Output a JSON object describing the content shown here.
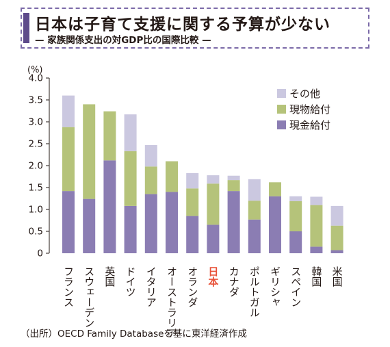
{
  "header": {
    "title": "日本は子育て支援に関する予算が少ない",
    "subtitle": "— 家族関係支出の対GDP比の国際比較 —"
  },
  "colors": {
    "cash": "#8b7db3",
    "in_kind": "#b5c37a",
    "other": "#cbc8e0",
    "highlight_label": "#e8533a",
    "title_accent": "#5e4b8b"
  },
  "chart_data": {
    "type": "bar",
    "stacked": true,
    "unit_label": "(%)",
    "ylim": [
      0,
      4.0
    ],
    "yticks": [
      "0",
      "0.5",
      "1.0",
      "1.5",
      "2.0",
      "2.5",
      "3.0",
      "3.5",
      "4.0"
    ],
    "ytick_values": [
      0,
      0.5,
      1.0,
      1.5,
      2.0,
      2.5,
      3.0,
      3.5,
      4.0
    ],
    "categories": [
      "フランス",
      "スウェーデン",
      "英国",
      "ドイツ",
      "イタリア",
      "オーストラリア",
      "オランダ",
      "日本",
      "カナダ",
      "ポルトガル",
      "ギリシャ",
      "スペイン",
      "韓国",
      "米国"
    ],
    "highlight_category": "日本",
    "series": [
      {
        "name": "現金給付",
        "color_key": "cash",
        "values": [
          1.42,
          1.24,
          2.12,
          1.08,
          1.35,
          1.4,
          0.85,
          0.65,
          1.42,
          0.77,
          1.3,
          0.5,
          0.15,
          0.07
        ]
      },
      {
        "name": "現物給付",
        "color_key": "in_kind",
        "values": [
          1.46,
          2.16,
          1.12,
          1.25,
          0.63,
          0.7,
          0.63,
          0.94,
          0.25,
          0.43,
          0.32,
          0.69,
          0.95,
          0.56
        ]
      },
      {
        "name": "その他",
        "color_key": "other",
        "values": [
          0.72,
          0.0,
          0.0,
          0.84,
          0.49,
          0.0,
          0.35,
          0.19,
          0.1,
          0.49,
          0.0,
          0.11,
          0.19,
          0.45
        ]
      }
    ],
    "legend": [
      "その他",
      "現物給付",
      "現金給付"
    ],
    "legend_position": "top-right",
    "grid": false
  },
  "footer": {
    "source": "（出所）OECD Family Databaseを基に東洋経済作成"
  }
}
